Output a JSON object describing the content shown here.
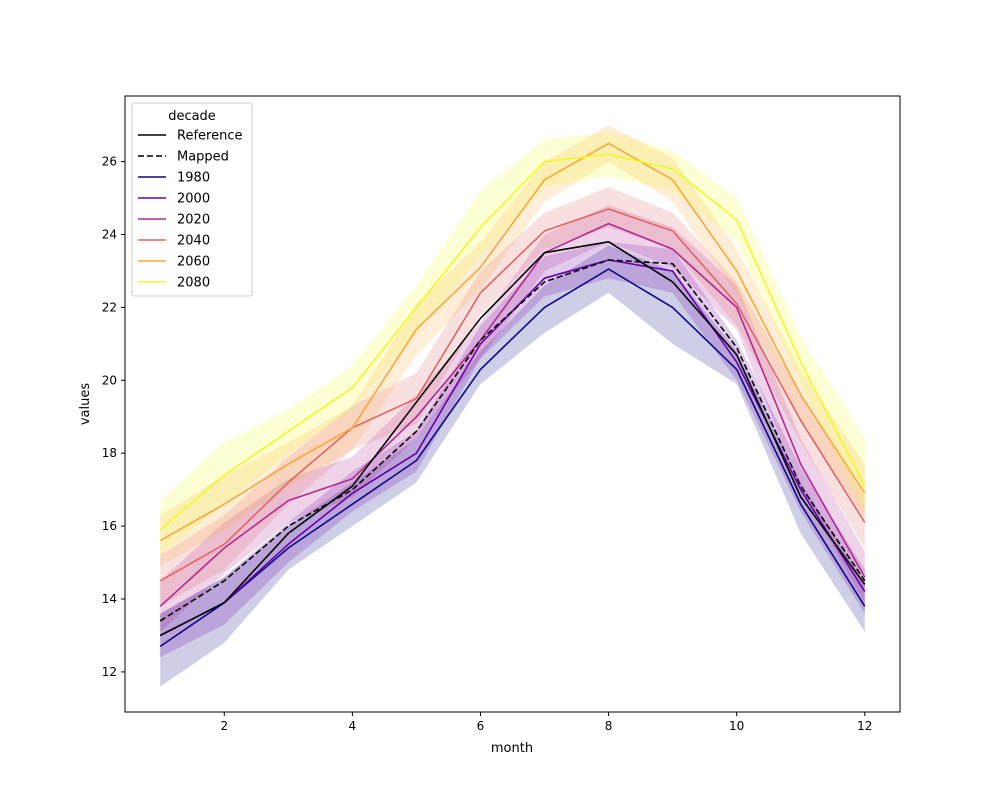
{
  "chart_data": {
    "type": "line",
    "xlabel": "month",
    "ylabel": "values",
    "xlim": [
      0.45,
      12.55
    ],
    "ylim": [
      10.9,
      27.8
    ],
    "xticks": [
      2,
      4,
      6,
      8,
      10,
      12
    ],
    "yticks": [
      12,
      14,
      16,
      18,
      20,
      22,
      24,
      26
    ],
    "grid": false,
    "legend": {
      "title": "decade",
      "placement": "upper left"
    },
    "x": [
      1,
      2,
      3,
      4,
      5,
      6,
      7,
      8,
      9,
      10,
      11,
      12
    ],
    "series": [
      {
        "name": "Reference",
        "color": "#000000",
        "dash": "solid",
        "values": [
          13.0,
          13.9,
          15.8,
          17.1,
          19.4,
          21.7,
          23.5,
          23.8,
          22.7,
          20.7,
          16.8,
          14.4
        ]
      },
      {
        "name": "Mapped",
        "color": "#000000",
        "dash": "dashed",
        "values": [
          13.4,
          14.5,
          16.0,
          17.0,
          18.6,
          21.1,
          22.7,
          23.3,
          23.2,
          20.9,
          17.1,
          14.5
        ]
      },
      {
        "name": "1980",
        "color": "#0d0887",
        "dash": "solid",
        "values": [
          12.7,
          13.9,
          15.4,
          16.6,
          17.8,
          20.3,
          22.0,
          23.05,
          22.0,
          20.3,
          16.6,
          13.8
        ],
        "band_lower": [
          11.6,
          12.8,
          14.8,
          16.0,
          17.2,
          19.9,
          21.3,
          22.4,
          21.0,
          19.9,
          15.8,
          13.1
        ],
        "band_upper": [
          13.6,
          14.6,
          16.0,
          17.2,
          18.4,
          20.8,
          22.6,
          23.7,
          23.0,
          20.8,
          17.2,
          14.4
        ]
      },
      {
        "name": "2000",
        "color": "#6a00a8",
        "dash": "solid",
        "values": [
          13.0,
          13.9,
          15.5,
          16.9,
          18.0,
          21.0,
          22.8,
          23.3,
          23.0,
          20.5,
          17.0,
          14.2
        ],
        "band_lower": [
          12.4,
          13.3,
          15.0,
          16.4,
          17.5,
          20.6,
          22.3,
          22.8,
          22.4,
          20.0,
          16.4,
          13.6
        ],
        "band_upper": [
          13.6,
          14.6,
          16.1,
          17.5,
          18.6,
          21.5,
          23.4,
          23.8,
          23.6,
          21.1,
          17.6,
          14.8
        ]
      },
      {
        "name": "2020",
        "color": "#b12a90",
        "dash": "solid",
        "values": [
          13.8,
          15.4,
          16.7,
          17.3,
          19.0,
          21.1,
          23.5,
          24.3,
          23.6,
          22.0,
          17.7,
          14.6
        ],
        "band_lower": [
          13.1,
          14.7,
          16.1,
          16.8,
          18.4,
          20.6,
          23.0,
          23.8,
          23.1,
          21.4,
          17.0,
          13.9
        ],
        "band_upper": [
          14.5,
          16.1,
          17.3,
          17.9,
          19.6,
          21.6,
          24.0,
          24.8,
          24.2,
          22.6,
          18.4,
          15.3
        ]
      },
      {
        "name": "2040",
        "color": "#e16462",
        "dash": "solid",
        "values": [
          14.5,
          15.5,
          17.2,
          18.7,
          19.5,
          22.4,
          24.1,
          24.7,
          24.1,
          22.1,
          18.9,
          16.1
        ],
        "band_lower": [
          13.8,
          14.8,
          16.6,
          18.1,
          18.8,
          21.8,
          23.6,
          24.2,
          23.6,
          21.5,
          18.3,
          15.4
        ],
        "band_upper": [
          15.2,
          16.3,
          17.9,
          19.3,
          20.2,
          23.0,
          24.6,
          25.3,
          24.6,
          22.7,
          19.6,
          16.8
        ]
      },
      {
        "name": "2060",
        "color": "#fca636",
        "dash": "solid",
        "values": [
          15.6,
          16.6,
          17.7,
          18.7,
          21.4,
          23.1,
          25.5,
          26.5,
          25.5,
          23.0,
          19.6,
          16.9
        ],
        "band_lower": [
          14.9,
          15.9,
          17.1,
          18.1,
          20.7,
          22.5,
          24.9,
          26.0,
          24.9,
          22.4,
          18.9,
          16.2
        ],
        "band_upper": [
          16.3,
          17.4,
          18.3,
          19.3,
          22.1,
          23.8,
          26.0,
          27.0,
          26.1,
          23.6,
          20.3,
          17.7
        ]
      },
      {
        "name": "2080",
        "color": "#f0f921",
        "dash": "solid",
        "values": [
          15.9,
          17.4,
          18.6,
          19.8,
          22.0,
          24.2,
          26.0,
          26.2,
          25.8,
          24.4,
          20.5,
          17.1
        ],
        "band_lower": [
          15.2,
          16.6,
          18.0,
          19.2,
          21.3,
          23.4,
          25.3,
          25.6,
          25.2,
          23.8,
          19.9,
          16.4
        ],
        "band_upper": [
          16.7,
          18.3,
          19.2,
          20.4,
          22.6,
          25.2,
          26.6,
          26.8,
          26.3,
          25.0,
          21.2,
          18.4
        ]
      }
    ]
  }
}
